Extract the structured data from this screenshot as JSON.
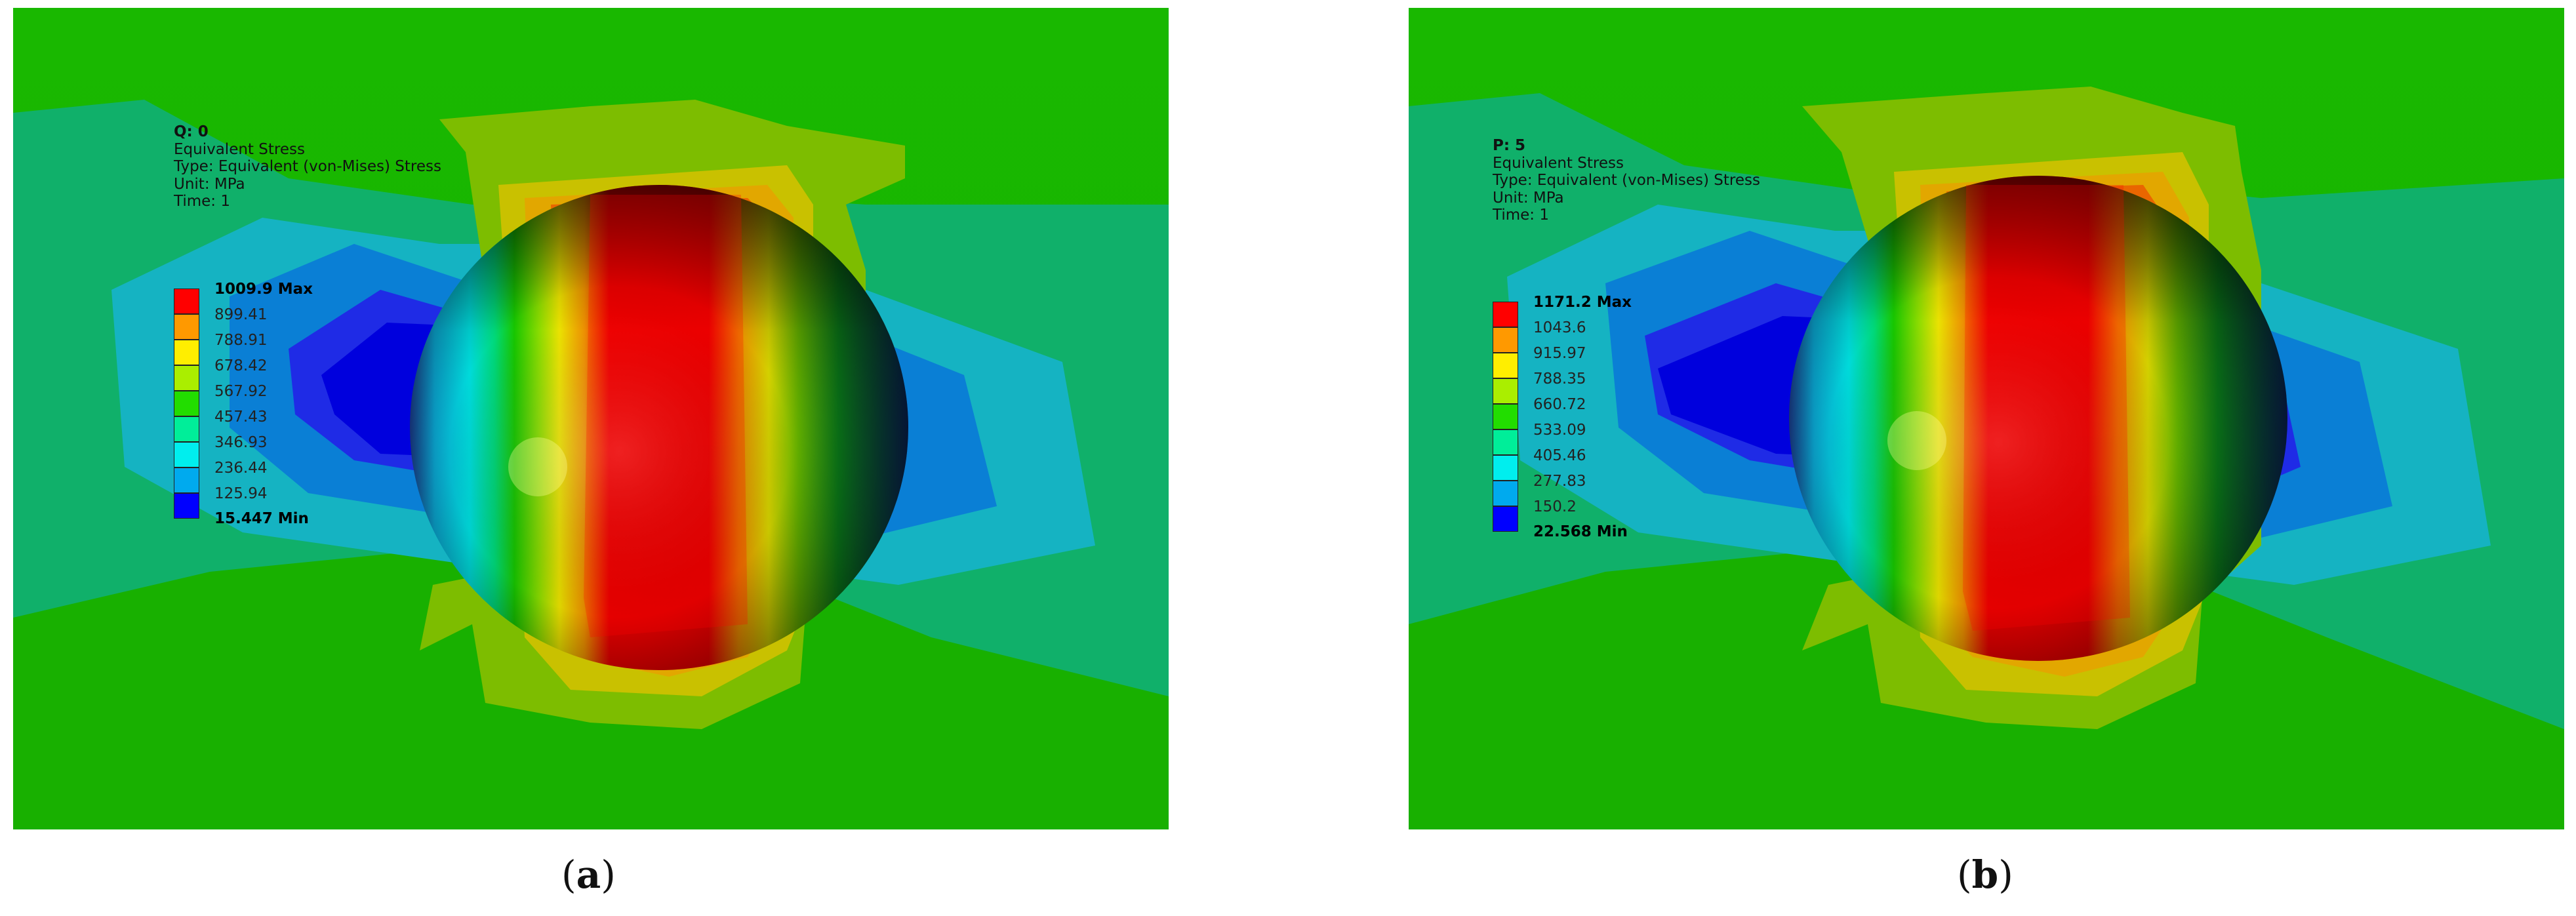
{
  "panels": [
    {
      "id": "a",
      "info": {
        "title": "Q: 0",
        "result": "Equivalent Stress",
        "type": "Type: Equivalent (von-Mises) Stress",
        "unit": "Unit: MPa",
        "time": "Time: 1"
      },
      "legend": {
        "max": "1009.9 Max",
        "levels": [
          "899.41",
          "788.91",
          "678.42",
          "567.92",
          "457.43",
          "346.93",
          "236.44",
          "125.94"
        ],
        "min": "15.447 Min"
      },
      "caption_letter": "a"
    },
    {
      "id": "b",
      "info": {
        "title": "P: 5",
        "result": "Equivalent Stress",
        "type": "Type: Equivalent (von-Mises) Stress",
        "unit": "Unit: MPa",
        "time": "Time: 1"
      },
      "legend": {
        "max": "1171.2 Max",
        "levels": [
          "1043.6",
          "915.97",
          "788.35",
          "660.72",
          "533.09",
          "405.46",
          "277.83",
          "150.2"
        ],
        "min": "22.568 Min"
      },
      "caption_letter": "b"
    }
  ],
  "legend_colors": [
    "#ff0000",
    "#ff9900",
    "#ffee00",
    "#aaee00",
    "#22dd00",
    "#00ee99",
    "#00eeee",
    "#00aaee",
    "#0000ff"
  ],
  "caption_paren_open": "(",
  "caption_paren_close": ")"
}
